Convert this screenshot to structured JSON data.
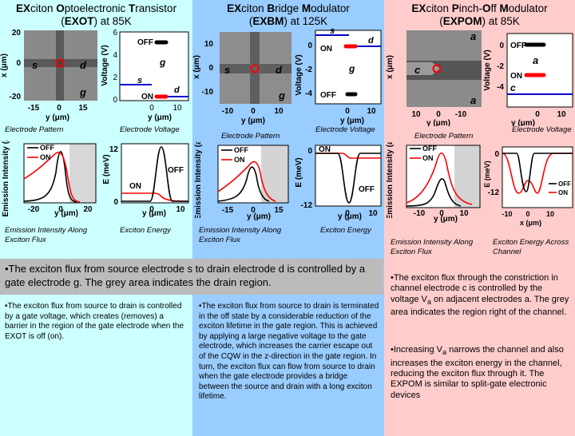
{
  "colors": {
    "col1_bg": "#ccffff",
    "col2_bg": "#99ccff",
    "col3_bg": "#ffcccc",
    "off": "#000000",
    "on": "#ff0000",
    "blue": "#0000cc",
    "grey_bar": "#bbbbbb"
  },
  "exot": {
    "title_prefix": "EX",
    "title_w1": "citon ",
    "title_o": "O",
    "title_w2": "ptoelectronic ",
    "title_t": "T",
    "title_w3": "ransistor",
    "title_line2": "(EXOT) at 85K",
    "pattern": {
      "ylabel": "x (μm)",
      "xlabel": "y (μm)",
      "yticks": [
        "20",
        "0",
        "-20"
      ],
      "xticks": [
        "-15",
        "0",
        "15"
      ],
      "labels": {
        "s": "s",
        "d": "d",
        "g": "g"
      }
    },
    "voltage": {
      "ylabel": "Voltage (V)",
      "xlabel": "y (μm)",
      "yticks": [
        "6",
        "4",
        "2",
        "0"
      ],
      "xticks": [
        "0",
        "10"
      ],
      "off": "OFF",
      "on": "ON",
      "g": "g",
      "s": "s",
      "d": "d"
    },
    "cap_pattern": "Electrode Pattern",
    "cap_voltage": "Electrode Voltage",
    "emission": {
      "ylabel": "Emission Intensity (a.u.)",
      "xlabel": "y (μm)",
      "xticks": [
        "-20",
        "0",
        "20"
      ],
      "legend_off": "OFF",
      "legend_on": "ON"
    },
    "energy": {
      "ylabel": "E (meV)",
      "xlabel": "y (μm)",
      "yticks": [
        "12",
        "0"
      ],
      "xticks": [
        "0",
        "10"
      ],
      "on": "ON",
      "off": "OFF"
    },
    "cap_emission": "Emission Intensity Along Exciton Flux",
    "cap_energy": "Exciton Energy",
    "desc": "•The exciton flux from source to drain is controlled by a gate voltage, which creates (removes) a barrier in the region of the gate electrode when the EXOT is off (on)."
  },
  "exbm": {
    "title_prefix": "EX",
    "title_w1": "citon ",
    "title_b": "B",
    "title_w2": "ridge ",
    "title_m": "M",
    "title_w3": "odulator",
    "title_line2": "(EXBM) at 125K",
    "pattern": {
      "ylabel": "x (μm)",
      "xlabel": "y (μm)",
      "yticks": [
        "10",
        "0",
        "-10"
      ],
      "xticks": [
        "-10",
        "0",
        "10"
      ],
      "labels": {
        "s": "s",
        "d": "d",
        "g": "g"
      }
    },
    "voltage": {
      "ylabel": "Voltage (V)",
      "xlabel": "y (μm)",
      "yticks": [
        "0",
        "-2",
        "-4"
      ],
      "xticks": [
        "0",
        "10"
      ],
      "off": "OFF",
      "on": "ON",
      "g": "g",
      "s": "s",
      "d": "d"
    },
    "cap_pattern": "Electrode Pattern",
    "cap_voltage": "Electrode Voltage",
    "emission": {
      "ylabel": "Emission Intensity (a.u.)",
      "xlabel": "y (μm)",
      "xticks": [
        "-15",
        "0",
        "15"
      ],
      "legend_off": "OFF",
      "legend_on": "ON"
    },
    "energy": {
      "ylabel": "E (meV)",
      "xlabel": "y (μm)",
      "yticks": [
        "0",
        "-12"
      ],
      "xticks": [
        "0",
        "10"
      ],
      "on": "ON",
      "off": "OFF"
    },
    "cap_emission": "Emission Intensity Along Exciton Flux",
    "cap_energy": "Exciton Energy",
    "desc": "•The exciton flux from source to drain is terminated in the off state by a considerable reduction of the exciton lifetime in the gate region. This is achieved by applying a large negative voltage to the gate electrode, which increases the carrier escape out of the CQW in the z-direction in the gate region. In turn, the exciton flux can flow from source to drain when the gate electrode provides a bridge between the source and drain with a long exciton lifetime."
  },
  "expom": {
    "title_prefix": "EX",
    "title_w1": "citon ",
    "title_p": "P",
    "title_w2": "inch-",
    "title_o": "O",
    "title_w3": "ff ",
    "title_m": "M",
    "title_w4": "odulator",
    "title_line2": "(EXPOM) at 85K",
    "pattern": {
      "ylabel": "x (μm)",
      "xlabel": "y (μm)",
      "xticks": [
        "10",
        "0",
        "-10"
      ],
      "labels": {
        "a_top": "a",
        "a_bot": "a",
        "c": "c"
      }
    },
    "voltage": {
      "ylabel": "Voltage (V)",
      "xlabel": "y (μm)",
      "yticks": [
        "0",
        "-2",
        "-4"
      ],
      "xticks": [
        "0",
        "10"
      ],
      "off": "OFF",
      "on": "ON",
      "a": "a",
      "c": "c"
    },
    "cap_pattern": "Electrode Pattern",
    "cap_voltage": "Electrode Voltage",
    "emission": {
      "ylabel": "Emission Intensity (a.u.)",
      "xlabel": "y (μm)",
      "xticks": [
        "-10",
        "0",
        "10"
      ],
      "legend_off": "OFF",
      "legend_on": "ON"
    },
    "energy": {
      "ylabel": "E (meV)",
      "xlabel": "x (μm)",
      "yticks": [
        "0",
        "-12"
      ],
      "xticks": [
        "-10",
        "0",
        "10"
      ],
      "legend_off": "OFF",
      "legend_on": "ON"
    },
    "cap_emission": "Emission Intensity Along Exciton Flux",
    "cap_energy": "Exciton Energy Across Channel",
    "desc1_a": "•The exciton flux through the constriction in channel electrode c is controlled by the voltage V",
    "desc1_sub": "a",
    "desc1_b": " on adjacent electrodes a. The grey area indicates the region right of the channel.",
    "desc2_a": "•Increasing V",
    "desc2_sub": "a",
    "desc2_b": " narrows the channel and also increases the exciton energy in the channel, reducing the exciton flux through it. The EXPOM is similar to split-gate electronic devices"
  },
  "shared_note": "•The exciton flux from source electrode s to drain electrode d is controlled by a gate electrode g. The grey area indicates the drain region."
}
